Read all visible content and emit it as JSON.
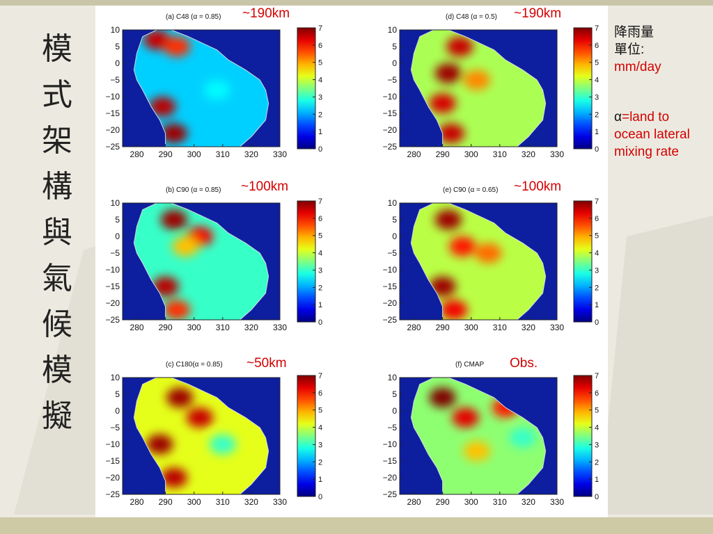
{
  "slide": {
    "vertical_title": [
      "模",
      "式",
      "架",
      "構",
      "與",
      "氣",
      "候",
      "模",
      "擬"
    ]
  },
  "side_note": {
    "line1": "降雨量",
    "line2": "單位:",
    "unit": "mm/day",
    "alpha_line1": "α=land to",
    "alpha_line2": "ocean lateral",
    "alpha_line3": "mixing rate"
  },
  "colors": {
    "ocean": "#0d1f9e",
    "coastline": "#d8d8e6",
    "annotation_red": "#d40000"
  },
  "chart_data": [
    {
      "type": "heatmap",
      "title": "(a) C48 (α = 0.85)",
      "annotation": "~190km",
      "xlim": [
        275,
        330
      ],
      "ylim": [
        -25,
        10
      ],
      "xticks": [
        280,
        290,
        300,
        310,
        320,
        330
      ],
      "yticks": [
        10,
        5,
        0,
        -5,
        -10,
        -15,
        -20,
        -25
      ],
      "colorbar": {
        "range": [
          0,
          7
        ],
        "ticks": [
          7,
          6,
          5,
          4,
          3,
          2,
          1,
          0
        ]
      },
      "base_value": 2.3,
      "features": [
        {
          "lon": 287,
          "lat": 7,
          "value": 6.5
        },
        {
          "lon": 294,
          "lat": 5,
          "value": 5.8
        },
        {
          "lon": 289,
          "lat": -13,
          "value": 6.6
        },
        {
          "lon": 293,
          "lat": -21,
          "value": 6.8
        },
        {
          "lon": 308,
          "lat": -8,
          "value": 2.6
        }
      ]
    },
    {
      "type": "heatmap",
      "title": "(d) C48 (α = 0.5)",
      "annotation": "~190km",
      "xlim": [
        275,
        330
      ],
      "ylim": [
        -25,
        10
      ],
      "xticks": [
        280,
        290,
        300,
        310,
        320,
        330
      ],
      "yticks": [
        10,
        5,
        0,
        -5,
        -10,
        -15,
        -20,
        -25
      ],
      "colorbar": {
        "range": [
          0,
          7
        ],
        "ticks": [
          7,
          6,
          5,
          4,
          3,
          2,
          1,
          0
        ]
      },
      "base_value": 3.8,
      "features": [
        {
          "lon": 292,
          "lat": -3,
          "value": 6.8
        },
        {
          "lon": 296,
          "lat": 5,
          "value": 6.5
        },
        {
          "lon": 302,
          "lat": -5,
          "value": 5.2
        },
        {
          "lon": 290,
          "lat": -12,
          "value": 6.4
        },
        {
          "lon": 293,
          "lat": -21,
          "value": 6.5
        }
      ]
    },
    {
      "type": "heatmap",
      "title": "(b) C90 (α = 0.85)",
      "annotation": "~100km",
      "xlim": [
        275,
        330
      ],
      "ylim": [
        -25,
        10
      ],
      "xticks": [
        280,
        290,
        300,
        310,
        320,
        330
      ],
      "yticks": [
        10,
        5,
        0,
        -5,
        -10,
        -15,
        -20,
        -25
      ],
      "colorbar": {
        "range": [
          0,
          7
        ],
        "ticks": [
          7,
          6,
          5,
          4,
          3,
          2,
          1,
          0
        ]
      },
      "base_value": 3.0,
      "features": [
        {
          "lon": 293,
          "lat": 5,
          "value": 6.8
        },
        {
          "lon": 302,
          "lat": 0,
          "value": 6.2
        },
        {
          "lon": 297,
          "lat": -3,
          "value": 4.8
        },
        {
          "lon": 290,
          "lat": -15,
          "value": 6.6
        },
        {
          "lon": 294,
          "lat": -22,
          "value": 5.8
        }
      ]
    },
    {
      "type": "heatmap",
      "title": "(e) C90 (α = 0.65)",
      "annotation": "~100km",
      "xlim": [
        275,
        330
      ],
      "ylim": [
        -25,
        10
      ],
      "xticks": [
        280,
        290,
        300,
        310,
        320,
        330
      ],
      "yticks": [
        10,
        5,
        0,
        -5,
        -10,
        -15,
        -20,
        -25
      ],
      "colorbar": {
        "range": [
          0,
          7
        ],
        "ticks": [
          7,
          6,
          5,
          4,
          3,
          2,
          1,
          0
        ]
      },
      "base_value": 3.9,
      "features": [
        {
          "lon": 292,
          "lat": 5,
          "value": 6.8
        },
        {
          "lon": 297,
          "lat": -3,
          "value": 6.0
        },
        {
          "lon": 306,
          "lat": -5,
          "value": 5.4
        },
        {
          "lon": 290,
          "lat": -15,
          "value": 6.8
        },
        {
          "lon": 294,
          "lat": -22,
          "value": 6.2
        }
      ]
    },
    {
      "type": "heatmap",
      "title": "(c) C180(α = 0.85)",
      "annotation": "~50km",
      "xlim": [
        275,
        330
      ],
      "ylim": [
        -25,
        10
      ],
      "xticks": [
        280,
        290,
        300,
        310,
        320,
        330
      ],
      "yticks": [
        10,
        5,
        0,
        -5,
        -10,
        -15,
        -20,
        -25
      ],
      "colorbar": {
        "range": [
          0,
          7
        ],
        "ticks": [
          7,
          6,
          5,
          4,
          3,
          2,
          1,
          0
        ]
      },
      "base_value": 4.2,
      "features": [
        {
          "lon": 295,
          "lat": 4,
          "value": 6.8
        },
        {
          "lon": 302,
          "lat": -2,
          "value": 6.5
        },
        {
          "lon": 288,
          "lat": -10,
          "value": 6.8
        },
        {
          "lon": 293,
          "lat": -20,
          "value": 6.6
        },
        {
          "lon": 310,
          "lat": -10,
          "value": 3.0
        }
      ]
    },
    {
      "type": "heatmap",
      "title": "(f) CMAP",
      "annotation": "Obs.",
      "xlim": [
        275,
        330
      ],
      "ylim": [
        -25,
        10
      ],
      "xticks": [
        280,
        290,
        300,
        310,
        320,
        330
      ],
      "yticks": [
        10,
        5,
        0,
        -5,
        -10,
        -15,
        -20,
        -25
      ],
      "colorbar": {
        "range": [
          0,
          7
        ],
        "ticks": [
          7,
          6,
          5,
          4,
          3,
          2,
          1,
          0
        ]
      },
      "base_value": 3.6,
      "features": [
        {
          "lon": 290,
          "lat": 4,
          "value": 7.0
        },
        {
          "lon": 298,
          "lat": -2,
          "value": 6.3
        },
        {
          "lon": 312,
          "lat": 1,
          "value": 6.0
        },
        {
          "lon": 302,
          "lat": -12,
          "value": 4.8
        },
        {
          "lon": 318,
          "lat": -8,
          "value": 3.0
        }
      ]
    }
  ]
}
